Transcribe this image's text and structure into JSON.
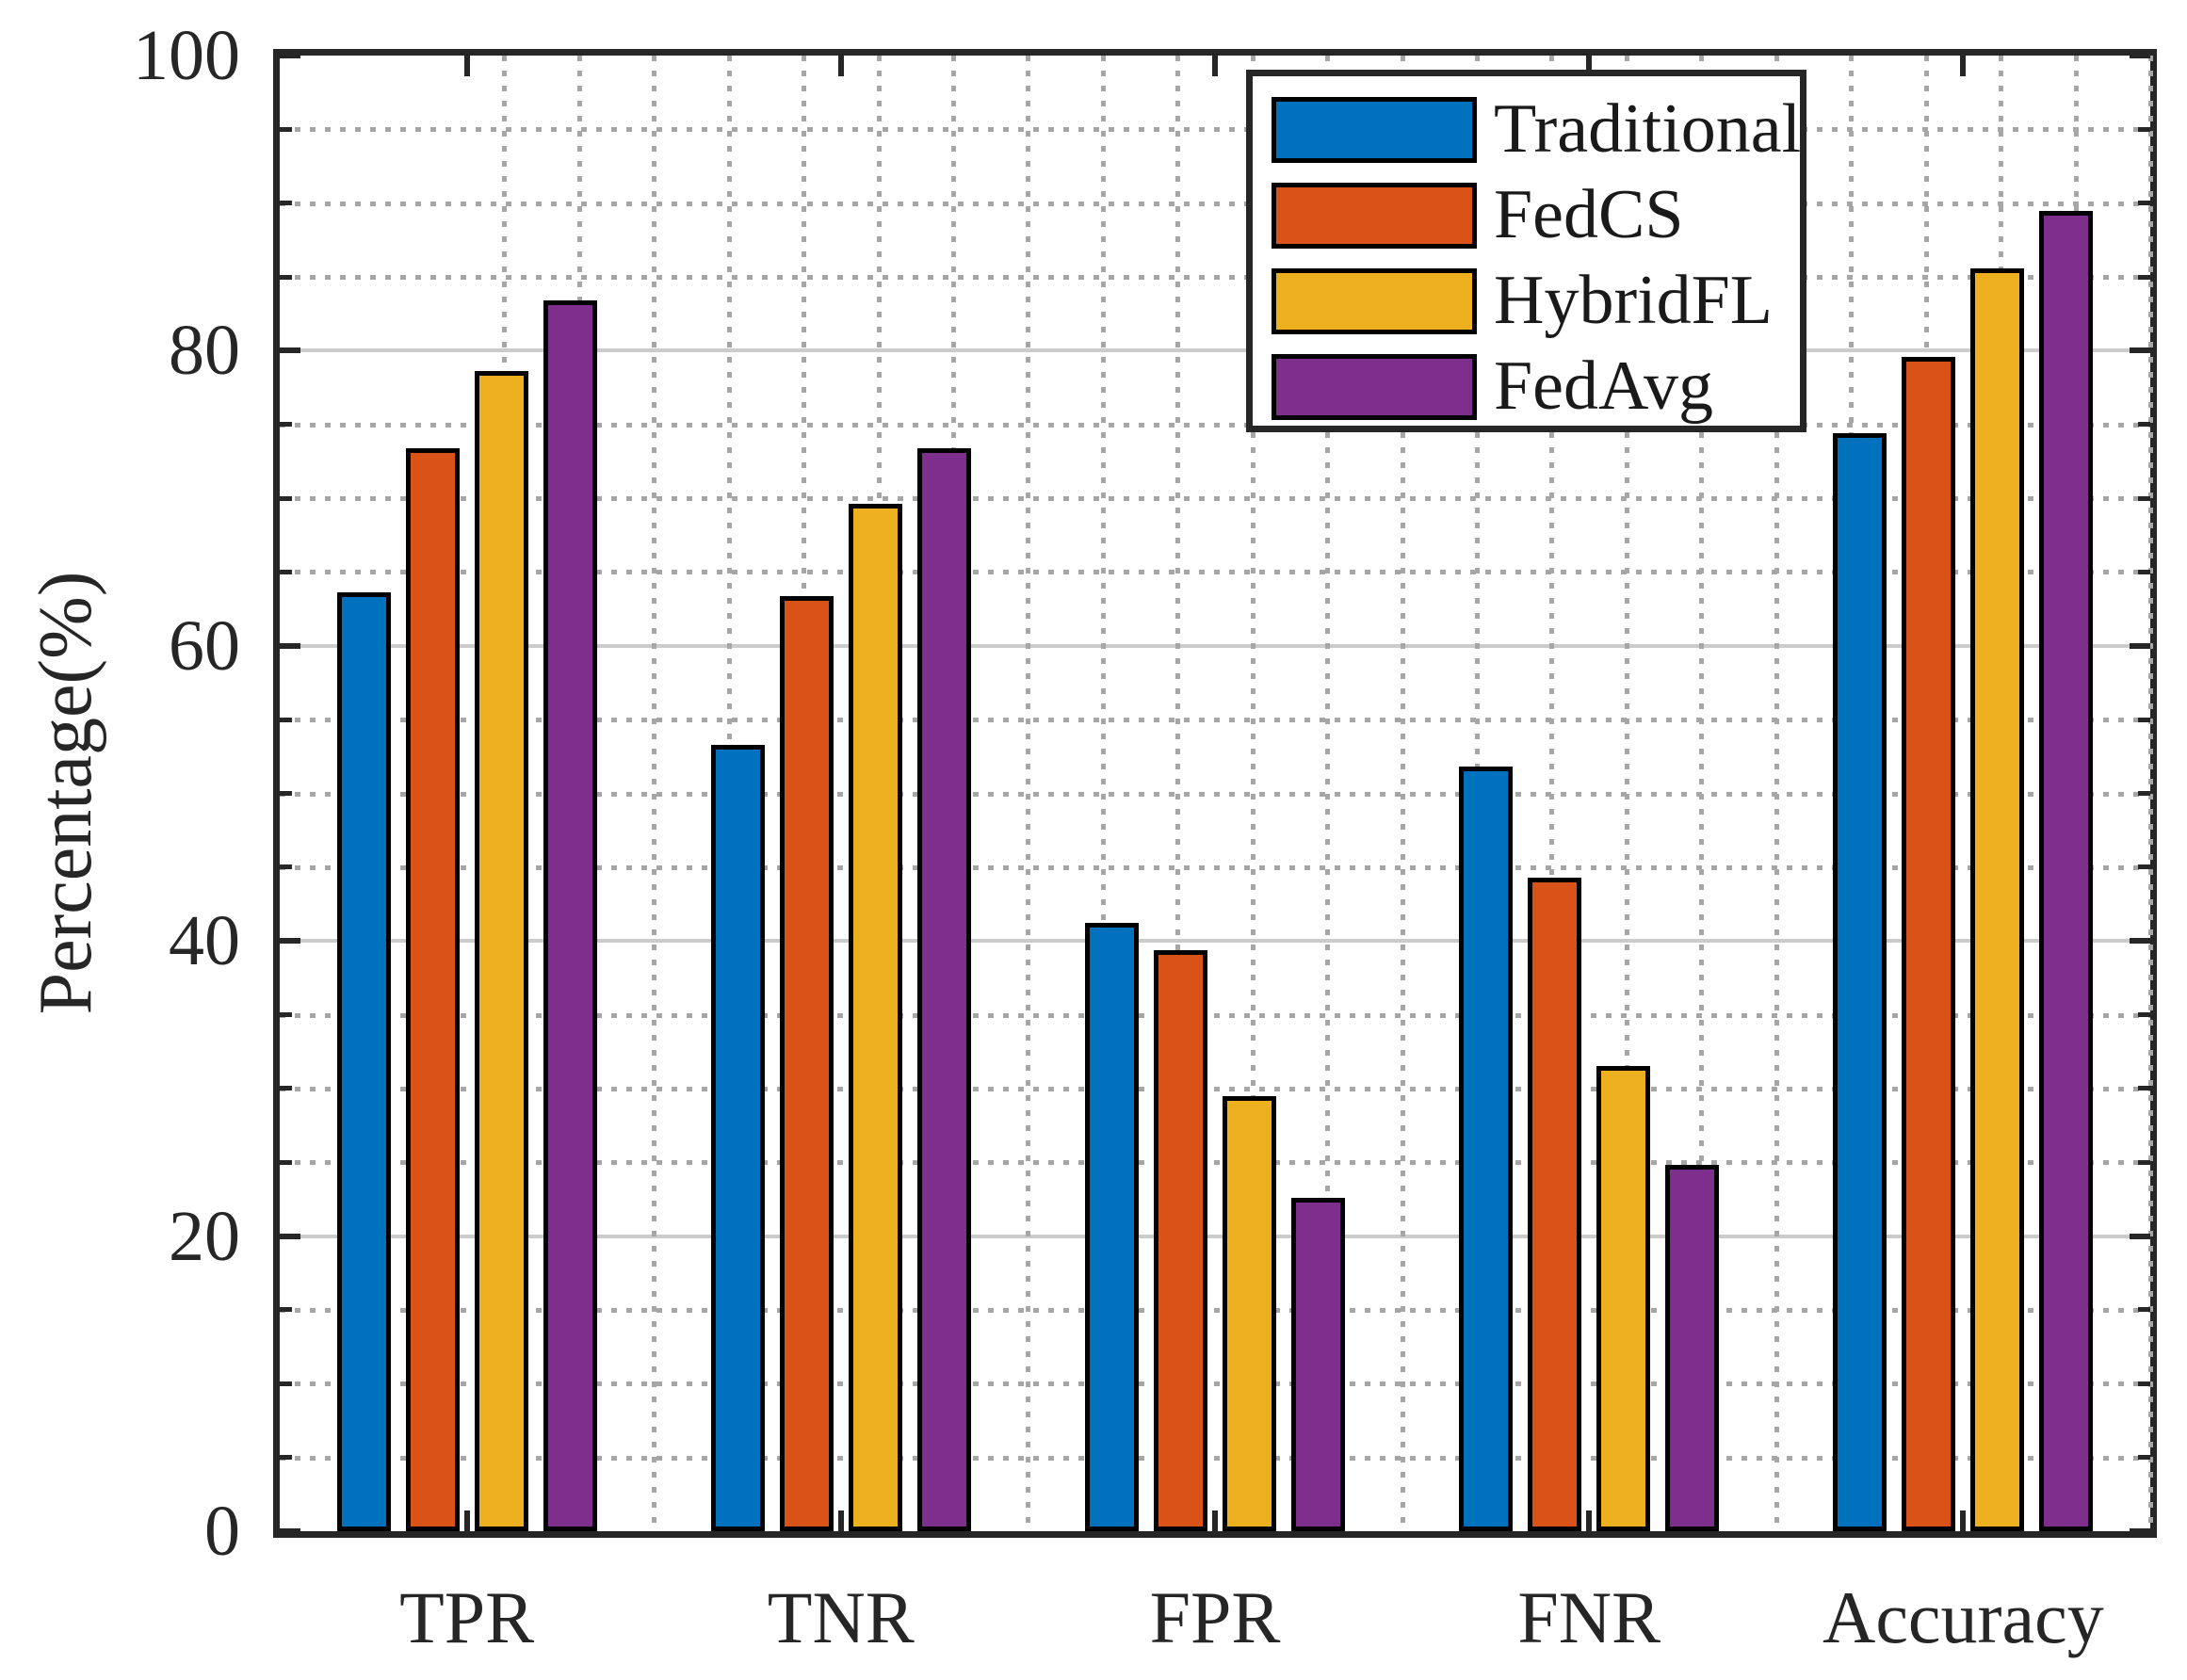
{
  "chart_data": {
    "type": "bar",
    "title": "",
    "xlabel": "",
    "ylabel": "Percentage(%)",
    "categories": [
      "TPR",
      "TNR",
      "FPR",
      "FNR",
      "Accuracy"
    ],
    "series": [
      {
        "name": "Traditional",
        "color": "#0072BD",
        "values": [
          63.6,
          53.3,
          41.2,
          51.8,
          74.4
        ]
      },
      {
        "name": "FedCS",
        "color": "#D95319",
        "values": [
          73.4,
          63.4,
          39.4,
          44.3,
          79.6
        ]
      },
      {
        "name": "HybridFL",
        "color": "#EDB120",
        "values": [
          78.6,
          69.6,
          29.5,
          31.5,
          85.6
        ]
      },
      {
        "name": "FedAvg",
        "color": "#7E2F8E",
        "values": [
          83.4,
          73.4,
          22.6,
          24.8,
          89.5
        ]
      }
    ],
    "ylim": [
      0,
      100
    ],
    "yticks": [
      0,
      20,
      40,
      60,
      80,
      100
    ],
    "ytick_labels": [
      "0",
      "20",
      "40",
      "60",
      "80",
      "100"
    ],
    "minor_tick_step": 5,
    "grid": {
      "major": "solid",
      "minor": "dotted",
      "major_color": "#cbcbcb",
      "minor_color": "#a6a6a6"
    },
    "legend_position": "top-right-inside",
    "bar_edge_color": "#000000",
    "axis_color": "#262626",
    "background_color": "#ffffff"
  },
  "legend": {
    "items": [
      {
        "label": "Traditional",
        "color": "#0072BD"
      },
      {
        "label": "FedCS",
        "color": "#D95319"
      },
      {
        "label": "HybridFL",
        "color": "#EDB120"
      },
      {
        "label": "FedAvg",
        "color": "#7E2F8E"
      }
    ]
  },
  "axes": {
    "ylabel": "Percentage(%)"
  }
}
